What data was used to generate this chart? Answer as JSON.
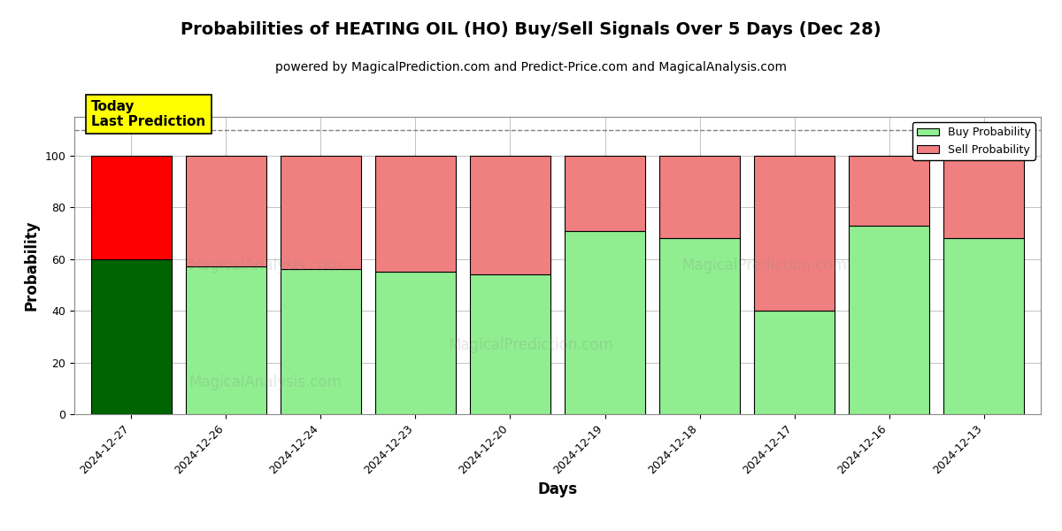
{
  "title": "Probabilities of HEATING OIL (HO) Buy/Sell Signals Over 5 Days (Dec 28)",
  "subtitle": "powered by MagicalPrediction.com and Predict-Price.com and MagicalAnalysis.com",
  "xlabel": "Days",
  "ylabel": "Probability",
  "categories": [
    "2024-12-27",
    "2024-12-26",
    "2024-12-24",
    "2024-12-23",
    "2024-12-20",
    "2024-12-19",
    "2024-12-18",
    "2024-12-17",
    "2024-12-16",
    "2024-12-13"
  ],
  "buy_values": [
    60,
    57,
    56,
    55,
    54,
    71,
    68,
    40,
    73,
    68
  ],
  "sell_values": [
    40,
    43,
    44,
    45,
    46,
    29,
    32,
    60,
    27,
    32
  ],
  "today_buy_color": "#006400",
  "today_sell_color": "#ff0000",
  "buy_color": "#90EE90",
  "sell_color": "#F08080",
  "bar_edge_color": "#000000",
  "ylim": [
    0,
    115
  ],
  "yticks": [
    0,
    20,
    40,
    60,
    80,
    100
  ],
  "dashed_line_y": 110,
  "legend_buy_label": "Buy Probability",
  "legend_sell_label": "Sell Probability",
  "today_label_text": "Today\nLast Prediction",
  "today_label_fontsize": 11,
  "today_label_bg": "#ffff00",
  "title_fontsize": 14,
  "subtitle_fontsize": 10,
  "axis_label_fontsize": 12,
  "tick_fontsize": 9,
  "bg_color": "#ffffff",
  "grid_color": "#aaaaaa",
  "bar_width": 0.85
}
